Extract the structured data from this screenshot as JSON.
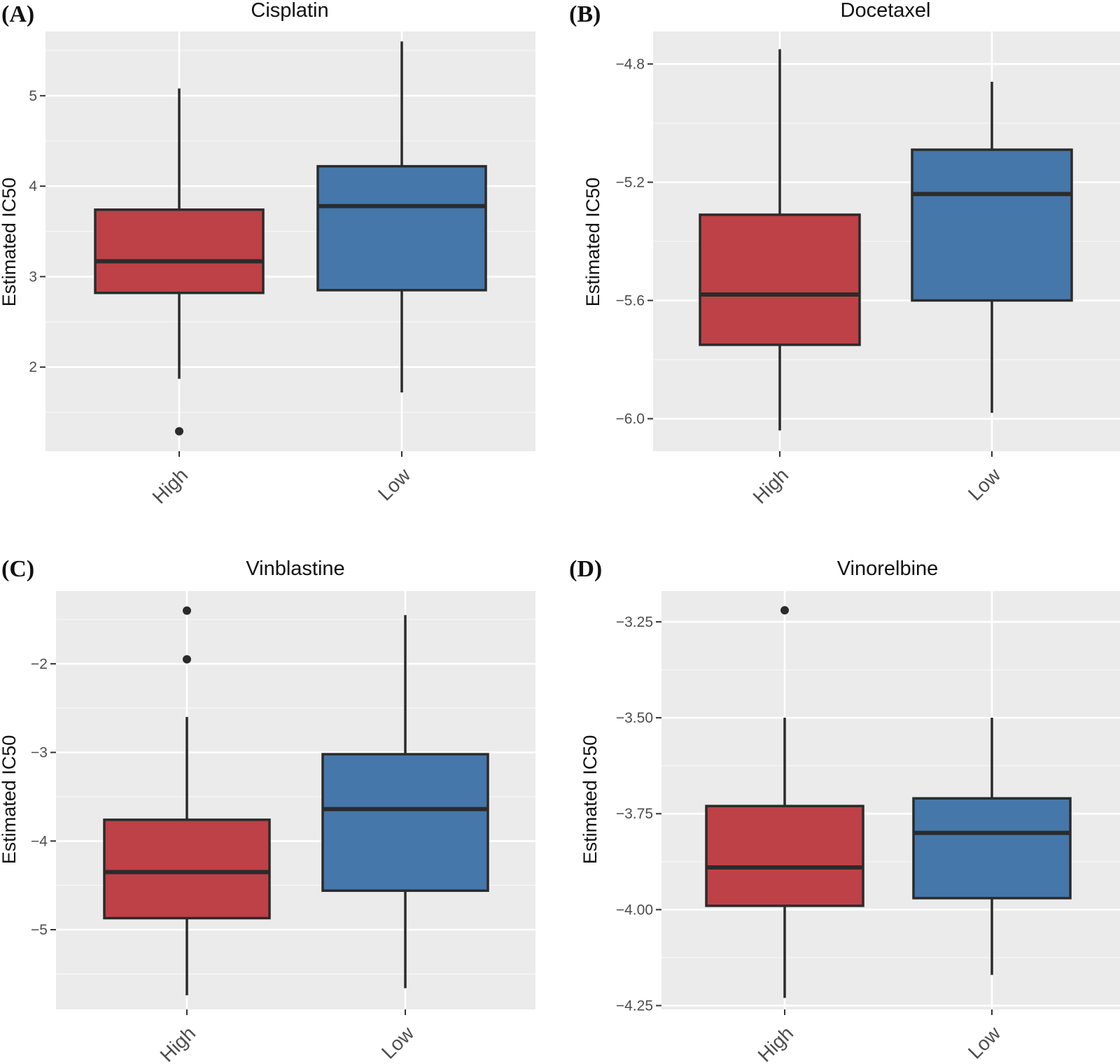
{
  "chart_data": [
    {
      "type": "box",
      "panel_label": "(A)",
      "title": "Cisplatin",
      "ylabel": "Estimated IC50",
      "categories": [
        "High",
        "Low"
      ],
      "yticks": [
        2,
        3,
        4,
        5
      ],
      "yticks_text": [
        "2",
        "3",
        "4",
        "5"
      ],
      "ylim": [
        1.07,
        5.71
      ],
      "boxes": [
        {
          "category": "High",
          "whisker_low": 1.87,
          "q1": 2.82,
          "median": 3.17,
          "q3": 3.74,
          "whisker_high": 5.08,
          "outliers": [
            1.29
          ],
          "color": "#bd4146"
        },
        {
          "category": "Low",
          "whisker_low": 1.72,
          "q1": 2.85,
          "median": 3.78,
          "q3": 4.22,
          "whisker_high": 5.6,
          "outliers": [],
          "color": "#4577aa"
        }
      ]
    },
    {
      "type": "box",
      "panel_label": "(B)",
      "title": "Docetaxel",
      "ylabel": "Estimated IC50",
      "categories": [
        "High",
        "Low"
      ],
      "yticks": [
        -4.8,
        -5.2,
        -5.6,
        -6.0
      ],
      "yticks_text": [
        "−4.8",
        "−5.2",
        "−5.6",
        "−6.0"
      ],
      "ylim": [
        -6.11,
        -4.69
      ],
      "boxes": [
        {
          "category": "High",
          "whisker_low": -6.04,
          "q1": -5.75,
          "median": -5.58,
          "q3": -5.31,
          "whisker_high": -4.75,
          "outliers": [],
          "color": "#bd4146"
        },
        {
          "category": "Low",
          "whisker_low": -5.98,
          "q1": -5.6,
          "median": -5.24,
          "q3": -5.09,
          "whisker_high": -4.86,
          "outliers": [],
          "color": "#4577aa"
        }
      ]
    },
    {
      "type": "box",
      "panel_label": "(C)",
      "title": "Vinblastine",
      "ylabel": "Estimated IC50",
      "categories": [
        "High",
        "Low"
      ],
      "yticks": [
        -2,
        -3,
        -4,
        -5
      ],
      "yticks_text": [
        "−2",
        "−3",
        "−4",
        "−5"
      ],
      "ylim": [
        -5.9,
        -1.18
      ],
      "boxes": [
        {
          "category": "High",
          "whisker_low": -5.74,
          "q1": -4.87,
          "median": -4.35,
          "q3": -3.76,
          "whisker_high": -2.6,
          "outliers": [
            -1.4,
            -1.95
          ],
          "color": "#bd4146"
        },
        {
          "category": "Low",
          "whisker_low": -5.66,
          "q1": -4.56,
          "median": -3.64,
          "q3": -3.02,
          "whisker_high": -1.45,
          "outliers": [],
          "color": "#4577aa"
        }
      ]
    },
    {
      "type": "box",
      "panel_label": "(D)",
      "title": "Vinorelbine",
      "ylabel": "Estimated IC50",
      "categories": [
        "High",
        "Low"
      ],
      "yticks": [
        -3.25,
        -3.5,
        -3.75,
        -4.0,
        -4.25
      ],
      "yticks_text": [
        "−3.25",
        "−3.50",
        "−3.75",
        "−4.00",
        "−4.25"
      ],
      "ylim": [
        -4.26,
        -3.17
      ],
      "boxes": [
        {
          "category": "High",
          "whisker_low": -4.23,
          "q1": -3.99,
          "median": -3.89,
          "q3": -3.73,
          "whisker_high": -3.5,
          "outliers": [
            -3.22
          ],
          "color": "#bd4146"
        },
        {
          "category": "Low",
          "whisker_low": -4.17,
          "q1": -3.97,
          "median": -3.8,
          "q3": -3.71,
          "whisker_high": -3.5,
          "outliers": [],
          "color": "#4577aa"
        }
      ]
    }
  ]
}
